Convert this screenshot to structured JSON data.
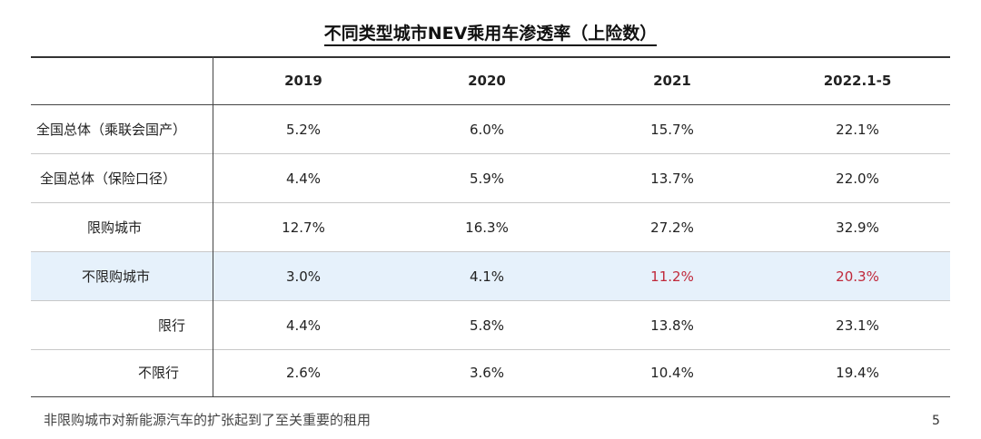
{
  "title": "不同类型城市NEV乘用车渗透率（上险数）",
  "table": {
    "columns": [
      "2019",
      "2020",
      "2021",
      "2022.1-5"
    ],
    "rows": [
      {
        "label": "全国总体（乘联会国产）",
        "values": [
          "5.2%",
          "6.0%",
          "15.7%",
          "22.1%"
        ]
      },
      {
        "label": "全国总体（保险口径）",
        "values": [
          "4.4%",
          "5.9%",
          "13.7%",
          "22.0%"
        ]
      },
      {
        "label": "限购城市",
        "values": [
          "12.7%",
          "16.3%",
          "27.2%",
          "32.9%"
        ]
      },
      {
        "label": "不限购城市",
        "values": [
          "3.0%",
          "4.1%",
          "11.2%",
          "20.3%"
        ]
      },
      {
        "label": "限行",
        "values": [
          "4.4%",
          "5.8%",
          "13.8%",
          "23.1%"
        ]
      },
      {
        "label": "不限行",
        "values": [
          "2.6%",
          "3.6%",
          "10.4%",
          "19.4%"
        ]
      }
    ]
  },
  "colors": {
    "highlight_row": "#e6f1fb",
    "highlight_text": "#c0283a"
  },
  "footer_note": "非限购城市对新能源汽车的扩张起到了至关重要的租用",
  "page_number": "5"
}
